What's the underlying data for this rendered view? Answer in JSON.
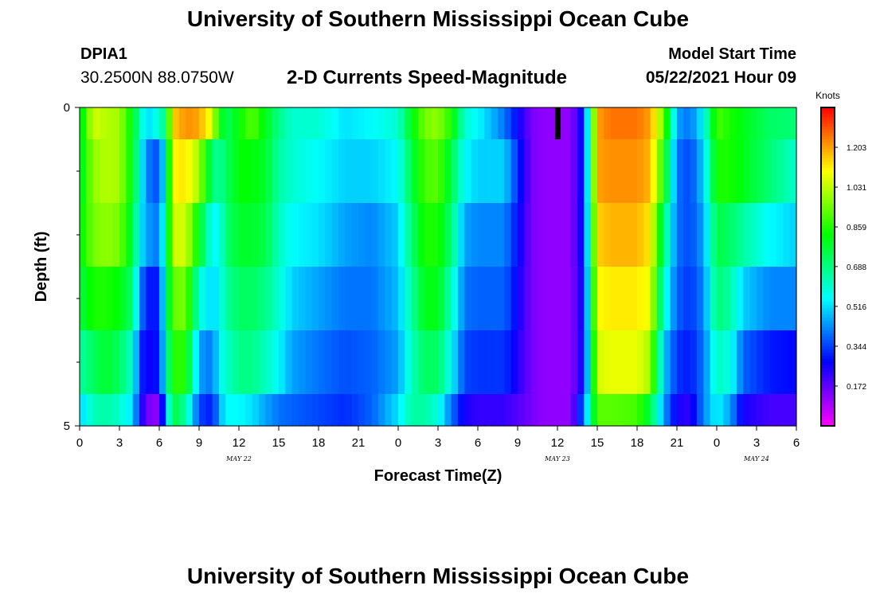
{
  "header": {
    "title": "University of Southern Mississippi Ocean Cube",
    "station_id": "DPIA1",
    "coords": "30.2500N  88.0750W",
    "subtitle": "2-D Currents Speed-Magnitude",
    "model_start_label": "Model Start Time",
    "model_start_value": "05/22/2021 Hour 09"
  },
  "footer": {
    "title": "University of Southern Mississippi Ocean Cube"
  },
  "chart_data": {
    "type": "heatmap",
    "xlabel": "Forecast Time(Z)",
    "ylabel": "Depth (ft)",
    "x_ticks": [
      "0",
      "3",
      "6",
      "9",
      "12",
      "15",
      "18",
      "21",
      "0",
      "3",
      "6",
      "9",
      "12",
      "15",
      "18",
      "21",
      "0",
      "3",
      "6"
    ],
    "x_range_hours": [
      0,
      54
    ],
    "date_labels": [
      {
        "text": "MAY 22",
        "hour": 12
      },
      {
        "text": "MAY 23",
        "hour": 36
      },
      {
        "text": "MAY 24",
        "hour": 51
      }
    ],
    "y_tick_labels": [
      {
        "text": "0",
        "depth": 0
      },
      {
        "text": "5",
        "depth": 5
      }
    ],
    "y_minor_ticks": [
      1,
      2,
      3,
      4
    ],
    "y_range_ft": [
      0,
      5
    ],
    "colorbar": {
      "title": "Knots",
      "ticks": [
        "1.203",
        "1.031",
        "0.859",
        "0.688",
        "0.516",
        "0.344",
        "0.172"
      ],
      "tick_values": [
        1.203,
        1.031,
        0.859,
        0.688,
        0.516,
        0.344,
        0.172
      ],
      "range": [
        0.0,
        1.375
      ]
    },
    "depth_rows": [
      "0-0.5",
      "0.5-1.5",
      "1.5-2.5",
      "2.5-3.5",
      "3.5-4.5",
      "4.5-5"
    ],
    "key_hours": [
      0,
      1,
      2,
      3,
      4,
      4.5,
      5,
      6,
      6.5,
      7,
      7.5,
      8,
      9,
      10,
      10.5,
      11,
      12,
      13,
      14,
      15,
      16,
      18,
      20,
      22,
      24,
      25,
      26,
      27,
      28,
      29,
      30,
      32,
      34,
      35,
      36,
      37,
      38,
      39,
      40,
      42,
      43,
      44,
      45,
      46,
      47,
      48,
      49,
      50,
      52,
      54
    ],
    "speed_knots": [
      [
        0.75,
        1.05,
        1.02,
        1.0,
        0.8,
        0.65,
        0.5,
        0.6,
        0.7,
        1.15,
        1.18,
        1.22,
        1.2,
        1.05,
        0.85,
        0.72,
        0.82,
        0.92,
        0.8,
        0.68,
        0.6,
        0.6,
        0.52,
        0.55,
        0.6,
        0.8,
        0.95,
        0.98,
        0.85,
        0.6,
        0.55,
        0.4,
        0.15,
        0.12,
        0.12,
        0.12,
        0.3,
        1.2,
        1.25,
        1.25,
        1.2,
        0.95,
        0.45,
        0.4,
        0.55,
        0.9,
        0.85,
        0.8,
        0.72,
        0.7
      ],
      [
        0.75,
        0.98,
        1.02,
        1.0,
        0.8,
        0.6,
        0.42,
        0.35,
        0.6,
        1.1,
        1.12,
        1.12,
        1.0,
        0.7,
        0.65,
        0.72,
        0.82,
        0.82,
        0.78,
        0.65,
        0.6,
        0.55,
        0.5,
        0.5,
        0.55,
        0.75,
        0.9,
        0.92,
        0.75,
        0.55,
        0.5,
        0.5,
        0.15,
        0.12,
        0.12,
        0.12,
        0.3,
        1.2,
        1.22,
        1.22,
        1.18,
        0.85,
        0.4,
        0.35,
        0.5,
        0.85,
        0.85,
        0.8,
        0.7,
        0.6
      ],
      [
        0.8,
        0.95,
        0.98,
        0.95,
        0.75,
        0.55,
        0.45,
        0.4,
        0.65,
        1.05,
        1.05,
        1.05,
        0.8,
        0.55,
        0.55,
        0.7,
        0.78,
        0.78,
        0.75,
        0.62,
        0.55,
        0.52,
        0.45,
        0.42,
        0.5,
        0.7,
        0.85,
        0.85,
        0.7,
        0.45,
        0.42,
        0.42,
        0.15,
        0.12,
        0.12,
        0.12,
        0.3,
        1.15,
        1.18,
        1.18,
        1.12,
        0.7,
        0.4,
        0.35,
        0.45,
        0.75,
        0.72,
        0.65,
        0.55,
        0.5
      ],
      [
        0.75,
        0.85,
        0.85,
        0.82,
        0.7,
        0.45,
        0.3,
        0.3,
        0.65,
        0.92,
        0.95,
        0.95,
        0.6,
        0.5,
        0.55,
        0.65,
        0.72,
        0.72,
        0.68,
        0.6,
        0.5,
        0.45,
        0.4,
        0.4,
        0.48,
        0.65,
        0.8,
        0.8,
        0.62,
        0.4,
        0.38,
        0.38,
        0.15,
        0.12,
        0.12,
        0.12,
        0.28,
        1.1,
        1.12,
        1.12,
        1.08,
        0.6,
        0.38,
        0.33,
        0.42,
        0.7,
        0.65,
        0.5,
        0.42,
        0.42
      ],
      [
        0.65,
        0.72,
        0.78,
        0.72,
        0.6,
        0.35,
        0.25,
        0.3,
        0.6,
        0.85,
        0.88,
        0.85,
        0.45,
        0.4,
        0.55,
        0.6,
        0.68,
        0.68,
        0.62,
        0.55,
        0.45,
        0.4,
        0.36,
        0.38,
        0.45,
        0.62,
        0.72,
        0.72,
        0.55,
        0.35,
        0.33,
        0.33,
        0.15,
        0.12,
        0.12,
        0.12,
        0.28,
        1.05,
        1.08,
        1.08,
        1.0,
        0.5,
        0.33,
        0.3,
        0.4,
        0.62,
        0.58,
        0.38,
        0.3,
        0.28
      ],
      [
        0.5,
        0.62,
        0.65,
        0.6,
        0.52,
        0.3,
        0.15,
        0.12,
        0.45,
        0.78,
        0.7,
        0.65,
        0.35,
        0.3,
        0.45,
        0.55,
        0.55,
        0.52,
        0.45,
        0.4,
        0.38,
        0.35,
        0.32,
        0.38,
        0.52,
        0.65,
        0.65,
        0.58,
        0.4,
        0.25,
        0.22,
        0.22,
        0.15,
        0.12,
        0.12,
        0.12,
        0.4,
        0.92,
        0.92,
        0.9,
        0.75,
        0.45,
        0.25,
        0.22,
        0.42,
        0.55,
        0.45,
        0.25,
        0.2,
        0.2
      ]
    ],
    "null_markers": [
      {
        "hour": 36,
        "depth_from": 0,
        "depth_to": 0.5
      }
    ]
  }
}
